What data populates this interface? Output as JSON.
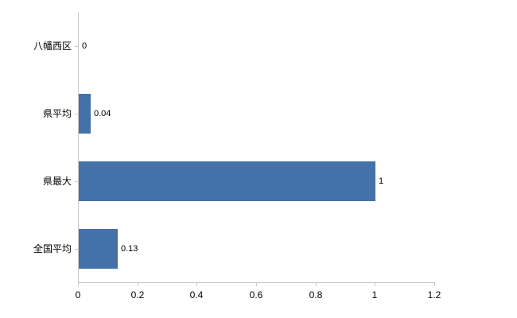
{
  "chart_data": {
    "type": "bar",
    "orientation": "horizontal",
    "title": "",
    "xlabel": "",
    "ylabel": "",
    "categories": [
      "八幡西区",
      "県平均",
      "県最大",
      "全国平均"
    ],
    "values": [
      0,
      0.04,
      1,
      0.13
    ],
    "value_labels": [
      "0",
      "0.04",
      "1",
      "0.13"
    ],
    "xlim": [
      0,
      1.2
    ],
    "x_ticks": [
      0,
      0.2,
      0.4,
      0.6,
      0.8,
      1,
      1.2
    ],
    "x_tick_labels": [
      "0",
      "0.2",
      "0.4",
      "0.6",
      "0.8",
      "1",
      "1.2"
    ],
    "grid": false,
    "legend": false,
    "colors": {
      "bar": "#4472a8",
      "axis": "#c9c9c9",
      "text": "#000000",
      "background": "#ffffff"
    }
  }
}
